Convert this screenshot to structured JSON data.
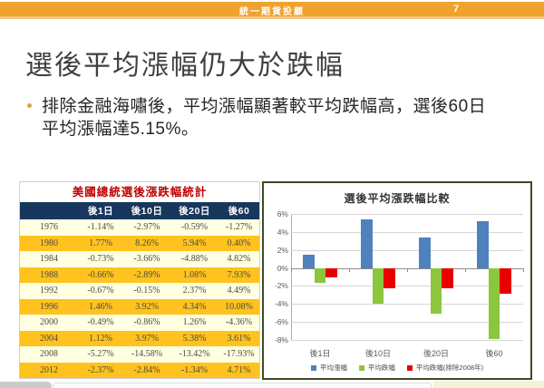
{
  "header": {
    "brand": "統一期貨投顧",
    "page_number": "7"
  },
  "slide": {
    "title": "選後平均漲幅仍大於跌幅",
    "bullet": {
      "line1": "排除金融海嘯後，平均漲幅顯著較平均跌幅高，選後60日",
      "line2": "平均漲幅達5.15%。"
    }
  },
  "table": {
    "title": "美國總統選後漲跌幅統計",
    "columns": [
      "",
      "後1日",
      "後10日",
      "後20日",
      "後60"
    ],
    "rows": [
      {
        "year": "1976",
        "values": [
          "-1.14%",
          "-2.97%",
          "-0.59%",
          "-1.27%"
        ]
      },
      {
        "year": "1980",
        "values": [
          "1.77%",
          "8.26%",
          "5.94%",
          "0.40%"
        ]
      },
      {
        "year": "1984",
        "values": [
          "-0.73%",
          "-3.66%",
          "-4.88%",
          "4.82%"
        ]
      },
      {
        "year": "1988",
        "values": [
          "-0.66%",
          "-2.89%",
          "1.08%",
          "7.93%"
        ]
      },
      {
        "year": "1992",
        "values": [
          "-0.67%",
          "-0.15%",
          "2.37%",
          "4.49%"
        ]
      },
      {
        "year": "1996",
        "values": [
          "1.46%",
          "3.92%",
          "4.34%",
          "10.08%"
        ]
      },
      {
        "year": "2000",
        "values": [
          "-0.49%",
          "-0.86%",
          "1.26%",
          "-4.36%"
        ]
      },
      {
        "year": "2004",
        "values": [
          "1.12%",
          "3.97%",
          "5.38%",
          "3.61%"
        ]
      },
      {
        "year": "2008",
        "values": [
          "-5.27%",
          "-14.58%",
          "-13.42%",
          "-17.93%"
        ]
      },
      {
        "year": "2012",
        "values": [
          "-2.37%",
          "-2.84%",
          "-1.34%",
          "4.71%"
        ]
      }
    ]
  },
  "chart_data": {
    "type": "bar",
    "title": "選後平均漲跌幅比較",
    "categories": [
      "後1日",
      "後10日",
      "後20日",
      "後60"
    ],
    "series": [
      {
        "name": "平均漲幅",
        "color": "#4F81BD",
        "values": [
          1.45,
          5.38,
          3.4,
          5.15
        ]
      },
      {
        "name": "平均跌幅",
        "color": "#8CC63E",
        "values": [
          -1.62,
          -3.99,
          -5.06,
          -7.85
        ]
      },
      {
        "name": "平均跌幅(排除2008年)",
        "color": "#E80000",
        "values": [
          -1.01,
          -2.23,
          -2.27,
          -2.82
        ]
      }
    ],
    "ylim": [
      -8,
      6
    ],
    "ytick_step": 2,
    "ytick_labels": [
      "6%",
      "4%",
      "2%",
      "0%",
      "-2%",
      "-4%",
      "-6%",
      "-8%"
    ],
    "grid": true,
    "legend_position": "bottom"
  }
}
